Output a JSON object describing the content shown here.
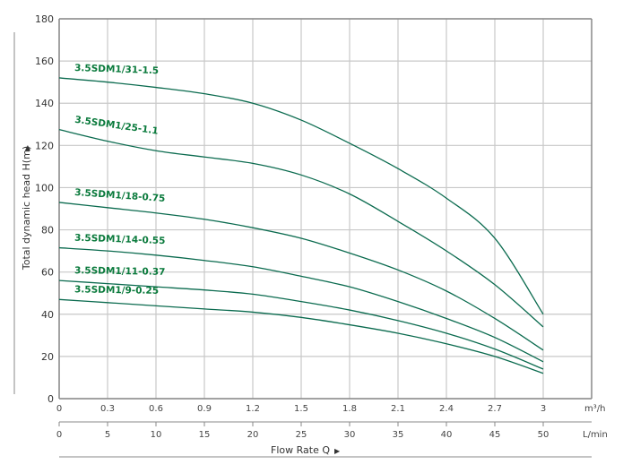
{
  "chart_data": {
    "type": "line",
    "title": "",
    "ylabel": "Total dynamic head H(m)",
    "xlabel": "Flow Rate Q",
    "x_unit_primary": "m³/h",
    "x_unit_secondary": "L/min",
    "ylim": [
      0,
      180
    ],
    "xlim": [
      0,
      3
    ],
    "grid": true,
    "y_ticks": [
      "0",
      "20",
      "40",
      "60",
      "80",
      "100",
      "120",
      "140",
      "160",
      "180"
    ],
    "x_ticks_primary": [
      "0",
      "0.3",
      "0.6",
      "0.9",
      "1.2",
      "1.5",
      "1.8",
      "2.1",
      "2.4",
      "2.7",
      "3"
    ],
    "x_ticks_secondary": [
      "0",
      "5",
      "10",
      "15",
      "20",
      "25",
      "30",
      "35",
      "40",
      "45",
      "50"
    ],
    "x": [
      0,
      0.3,
      0.6,
      0.9,
      1.2,
      1.5,
      1.8,
      2.1,
      2.4,
      2.7,
      3
    ],
    "series": [
      {
        "name": "3.5SDM1/31-1.5",
        "values": [
          152,
          150,
          147.5,
          144.5,
          140,
          132,
          121,
          109,
          95,
          76,
          40
        ]
      },
      {
        "name": "3.5SDM1/25-1.1",
        "values": [
          127.5,
          122,
          117.5,
          114.5,
          111.5,
          106,
          97,
          84,
          70,
          54,
          34
        ]
      },
      {
        "name": "3.5SDM1/18-0.75",
        "values": [
          93,
          90.5,
          88,
          85,
          81,
          76,
          69,
          61,
          51,
          38,
          23
        ]
      },
      {
        "name": "3.5SDM1/14-0.55",
        "values": [
          71.5,
          70,
          68,
          65.5,
          62.5,
          58,
          53,
          46,
          38,
          29,
          17.5
        ]
      },
      {
        "name": "3.5SDM1/11-0.37",
        "values": [
          56,
          54.5,
          53,
          51.5,
          49.5,
          46,
          42,
          37,
          31,
          23.5,
          14
        ]
      },
      {
        "name": "3.5SDM1/9-0.25",
        "values": [
          47,
          45.5,
          44,
          42.5,
          41,
          38.5,
          35,
          31,
          26,
          20,
          12
        ]
      }
    ],
    "colors": {
      "curve": "#0b6b4f",
      "label": "#0a7a3c",
      "grid": "#c8c8c8",
      "axis": "#888888"
    }
  }
}
